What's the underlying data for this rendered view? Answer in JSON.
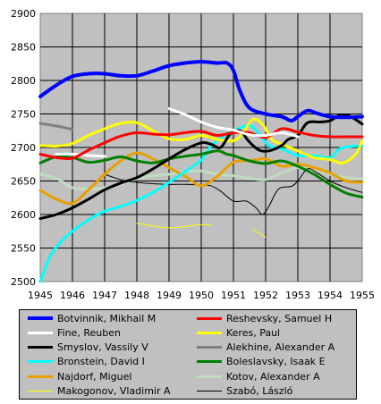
{
  "chart_data": {
    "type": "line",
    "title": "",
    "xlabel": "",
    "ylabel": "",
    "xlim": [
      1945,
      1955
    ],
    "ylim": [
      2500,
      2900
    ],
    "x_ticks": [
      "1945",
      "1946",
      "1947",
      "1948",
      "1949",
      "1950",
      "1951",
      "1952",
      "1953",
      "1954",
      "1955"
    ],
    "y_ticks": [
      "2500",
      "2550",
      "2600",
      "2650",
      "2700",
      "2750",
      "2800",
      "2850",
      "2900"
    ],
    "grid": true,
    "legend_position": "bottom",
    "series": [
      {
        "name": "Botvinnik, Mikhail M",
        "color": "#0000ff",
        "width": 4,
        "points": [
          [
            1945,
            2776
          ],
          [
            1945.5,
            2793
          ],
          [
            1946,
            2806
          ],
          [
            1946.5,
            2810
          ],
          [
            1947,
            2810
          ],
          [
            1947.5,
            2807
          ],
          [
            1948,
            2807
          ],
          [
            1948.5,
            2814
          ],
          [
            1949,
            2822
          ],
          [
            1949.5,
            2826
          ],
          [
            1950,
            2828
          ],
          [
            1950.5,
            2826
          ],
          [
            1950.8,
            2826
          ],
          [
            1951,
            2815
          ],
          [
            1951.2,
            2785
          ],
          [
            1951.5,
            2759
          ],
          [
            1952,
            2750
          ],
          [
            1952.5,
            2746
          ],
          [
            1952.8,
            2740
          ],
          [
            1953,
            2746
          ],
          [
            1953.3,
            2755
          ],
          [
            1953.6,
            2751
          ],
          [
            1954,
            2746
          ],
          [
            1954.5,
            2745
          ],
          [
            1955,
            2746
          ]
        ]
      },
      {
        "name": "Reshevsky, Samuel H",
        "color": "#ff0000",
        "width": 3,
        "points": [
          [
            1945,
            2690
          ],
          [
            1945.5,
            2685
          ],
          [
            1946,
            2684
          ],
          [
            1946.5,
            2696
          ],
          [
            1947,
            2707
          ],
          [
            1947.5,
            2717
          ],
          [
            1948,
            2722
          ],
          [
            1948.5,
            2720
          ],
          [
            1949,
            2719
          ],
          [
            1949.5,
            2722
          ],
          [
            1950,
            2724
          ],
          [
            1950.5,
            2718
          ],
          [
            1951,
            2722
          ],
          [
            1951.5,
            2722
          ],
          [
            1952,
            2715
          ],
          [
            1952.5,
            2728
          ],
          [
            1953,
            2723
          ],
          [
            1953.5,
            2718
          ],
          [
            1954,
            2716
          ],
          [
            1954.5,
            2716
          ],
          [
            1955,
            2716
          ]
        ]
      },
      {
        "name": "Fine, Reuben",
        "color": "#ffffff",
        "width": 3,
        "points": [
          [
            1949,
            2758
          ],
          [
            1949.5,
            2749
          ],
          [
            1950,
            2738
          ],
          [
            1950.5,
            2730
          ],
          [
            1951,
            2726
          ],
          [
            1951.5,
            2719
          ],
          [
            1952,
            2718
          ],
          [
            1952.5,
            2722
          ],
          [
            1953,
            2716
          ]
        ]
      },
      {
        "name": "Fine, Reuben (b)",
        "color": "#ffffff",
        "width": 3,
        "points": [
          [
            1945.5,
            2690
          ],
          [
            1946,
            2690
          ],
          [
            1946.5,
            2688
          ],
          [
            1947,
            2687
          ]
        ]
      },
      {
        "name": "Keres, Paul",
        "color": "#ffff00",
        "width": 3,
        "points": [
          [
            1945,
            2703
          ],
          [
            1945.5,
            2702
          ],
          [
            1946,
            2706
          ],
          [
            1946.5,
            2718
          ],
          [
            1947,
            2728
          ],
          [
            1947.5,
            2736
          ],
          [
            1948,
            2737
          ],
          [
            1948.5,
            2725
          ],
          [
            1949,
            2713
          ],
          [
            1949.5,
            2712
          ],
          [
            1950,
            2718
          ],
          [
            1950.5,
            2712
          ],
          [
            1951,
            2710
          ],
          [
            1951.3,
            2722
          ],
          [
            1951.6,
            2742
          ],
          [
            1951.9,
            2735
          ],
          [
            1952.2,
            2712
          ],
          [
            1952.5,
            2705
          ],
          [
            1953,
            2695
          ],
          [
            1953.5,
            2685
          ],
          [
            1954,
            2682
          ],
          [
            1954.4,
            2677
          ],
          [
            1954.8,
            2690
          ],
          [
            1955,
            2710
          ]
        ]
      },
      {
        "name": "Smyslov, Vassily V",
        "color": "#000000",
        "width": 3,
        "points": [
          [
            1945,
            2594
          ],
          [
            1945.5,
            2600
          ],
          [
            1946,
            2610
          ],
          [
            1946.5,
            2623
          ],
          [
            1947,
            2637
          ],
          [
            1947.5,
            2647
          ],
          [
            1948,
            2655
          ],
          [
            1948.5,
            2668
          ],
          [
            1949,
            2683
          ],
          [
            1949.5,
            2697
          ],
          [
            1950,
            2707
          ],
          [
            1950.3,
            2705
          ],
          [
            1950.6,
            2700
          ],
          [
            1950.9,
            2720
          ],
          [
            1951.2,
            2725
          ],
          [
            1951.5,
            2708
          ],
          [
            1951.8,
            2696
          ],
          [
            1952.1,
            2695
          ],
          [
            1952.5,
            2703
          ],
          [
            1952.7,
            2712
          ],
          [
            1953,
            2718
          ],
          [
            1953.3,
            2737
          ],
          [
            1953.7,
            2738
          ],
          [
            1954,
            2740
          ],
          [
            1954.3,
            2748
          ],
          [
            1954.6,
            2747
          ],
          [
            1955,
            2735
          ]
        ]
      },
      {
        "name": "Alekhine, Alexander A",
        "color": "#808080",
        "width": 3,
        "points": [
          [
            1945,
            2736
          ],
          [
            1945.5,
            2732
          ],
          [
            1946,
            2727
          ]
        ]
      },
      {
        "name": "Bronstein, David I",
        "color": "#00ffff",
        "width": 3,
        "points": [
          [
            1945,
            2500
          ],
          [
            1945.3,
            2537
          ],
          [
            1945.6,
            2557
          ],
          [
            1946,
            2575
          ],
          [
            1946.5,
            2592
          ],
          [
            1947,
            2605
          ],
          [
            1947.5,
            2612
          ],
          [
            1948,
            2621
          ],
          [
            1948.5,
            2633
          ],
          [
            1949,
            2648
          ],
          [
            1949.5,
            2664
          ],
          [
            1950,
            2681
          ],
          [
            1950.3,
            2702
          ],
          [
            1950.7,
            2717
          ],
          [
            1951,
            2725
          ],
          [
            1951.5,
            2733
          ],
          [
            1951.8,
            2720
          ],
          [
            1952.1,
            2703
          ],
          [
            1952.5,
            2698
          ],
          [
            1953,
            2688
          ],
          [
            1953.5,
            2688
          ],
          [
            1954,
            2685
          ],
          [
            1954.3,
            2698
          ],
          [
            1954.7,
            2702
          ],
          [
            1955,
            2702
          ]
        ]
      },
      {
        "name": "Boleslavsky, Isaak E",
        "color": "#008000",
        "width": 3,
        "points": [
          [
            1945,
            2677
          ],
          [
            1945.5,
            2686
          ],
          [
            1946,
            2685
          ],
          [
            1946.5,
            2678
          ],
          [
            1947,
            2681
          ],
          [
            1947.5,
            2686
          ],
          [
            1948,
            2680
          ],
          [
            1948.5,
            2677
          ],
          [
            1949,
            2683
          ],
          [
            1949.5,
            2687
          ],
          [
            1950,
            2690
          ],
          [
            1950.5,
            2695
          ],
          [
            1950.8,
            2690
          ],
          [
            1951,
            2688
          ],
          [
            1951.5,
            2680
          ],
          [
            1952,
            2676
          ],
          [
            1952.5,
            2680
          ],
          [
            1953,
            2672
          ],
          [
            1953.5,
            2660
          ],
          [
            1954,
            2645
          ],
          [
            1954.5,
            2632
          ],
          [
            1955,
            2626
          ]
        ]
      },
      {
        "name": "Najdorf, Miguel",
        "color": "#e8a000",
        "width": 3,
        "points": [
          [
            1945,
            2636
          ],
          [
            1945.5,
            2623
          ],
          [
            1946,
            2617
          ],
          [
            1946.5,
            2637
          ],
          [
            1947,
            2660
          ],
          [
            1947.5,
            2680
          ],
          [
            1948,
            2692
          ],
          [
            1948.5,
            2683
          ],
          [
            1949,
            2670
          ],
          [
            1949.5,
            2657
          ],
          [
            1950,
            2643
          ],
          [
            1950.5,
            2657
          ],
          [
            1951,
            2678
          ],
          [
            1951.5,
            2680
          ],
          [
            1952,
            2683
          ],
          [
            1952.5,
            2672
          ],
          [
            1953,
            2675
          ],
          [
            1953.5,
            2670
          ],
          [
            1954,
            2662
          ],
          [
            1954.5,
            2650
          ],
          [
            1955,
            2648
          ]
        ]
      },
      {
        "name": "Kotov, Alexander A",
        "color": "#c0dcc0",
        "width": 3,
        "points": [
          [
            1945,
            2660
          ],
          [
            1945.5,
            2654
          ],
          [
            1946,
            2640
          ],
          [
            1946.5,
            2638
          ],
          [
            1947,
            2640
          ],
          [
            1947.5,
            2645
          ],
          [
            1948,
            2653
          ],
          [
            1948.5,
            2658
          ],
          [
            1949,
            2660
          ],
          [
            1949.5,
            2664
          ],
          [
            1950,
            2665
          ],
          [
            1950.5,
            2660
          ],
          [
            1951,
            2658
          ],
          [
            1951.5,
            2654
          ],
          [
            1952,
            2652
          ],
          [
            1952.5,
            2662
          ],
          [
            1953,
            2670
          ],
          [
            1953.5,
            2668
          ],
          [
            1954,
            2660
          ],
          [
            1954.5,
            2655
          ],
          [
            1955,
            2653
          ]
        ]
      },
      {
        "name": "Makogonov, Vladimir A",
        "color": "#ffff00",
        "width": 1,
        "points": [
          [
            1948,
            2587
          ],
          [
            1948.5,
            2583
          ],
          [
            1949,
            2580
          ],
          [
            1949.5,
            2582
          ],
          [
            1950,
            2585
          ],
          [
            1950.3,
            2584
          ]
        ]
      },
      {
        "name": "Makogonov, Vladimir A (b)",
        "color": "#ffff00",
        "width": 1,
        "points": [
          [
            1951.6,
            2578
          ],
          [
            1952,
            2566
          ]
        ]
      },
      {
        "name": "Szabó, László",
        "color": "#000000",
        "width": 1,
        "points": [
          [
            1947,
            2660
          ],
          [
            1947.5,
            2652
          ],
          [
            1948,
            2648
          ],
          [
            1948.5,
            2646
          ],
          [
            1949,
            2645
          ],
          [
            1949.5,
            2645
          ],
          [
            1950,
            2644
          ],
          [
            1950.3,
            2643
          ],
          [
            1950.6,
            2635
          ],
          [
            1951,
            2620
          ],
          [
            1951.4,
            2620
          ],
          [
            1951.7,
            2610
          ],
          [
            1951.9,
            2600
          ],
          [
            1952.1,
            2612
          ],
          [
            1952.4,
            2638
          ],
          [
            1952.8,
            2642
          ],
          [
            1953,
            2650
          ],
          [
            1953.3,
            2668
          ],
          [
            1953.6,
            2662
          ],
          [
            1954,
            2650
          ],
          [
            1954.5,
            2640
          ],
          [
            1955,
            2633
          ]
        ]
      }
    ],
    "legend": [
      {
        "label": "Botvinnik, Mikhail M",
        "color": "#0000ff",
        "width": 4
      },
      {
        "label": "Reshevsky, Samuel H",
        "color": "#ff0000",
        "width": 3
      },
      {
        "label": "Fine, Reuben",
        "color": "#ffffff",
        "width": 3
      },
      {
        "label": "Keres, Paul",
        "color": "#ffff00",
        "width": 3
      },
      {
        "label": "Smyslov, Vassily V",
        "color": "#000000",
        "width": 3
      },
      {
        "label": "Alekhine, Alexander A",
        "color": "#808080",
        "width": 3
      },
      {
        "label": "Bronstein, David I",
        "color": "#00ffff",
        "width": 3
      },
      {
        "label": "Boleslavsky, Isaak E",
        "color": "#008000",
        "width": 3
      },
      {
        "label": "Najdorf, Miguel",
        "color": "#e8a000",
        "width": 3
      },
      {
        "label": "Kotov, Alexander A",
        "color": "#c0dcc0",
        "width": 3
      },
      {
        "label": "Makogonov, Vladimir A",
        "color": "#ffff00",
        "width": 1
      },
      {
        "label": "Szabó, László",
        "color": "#000000",
        "width": 1
      }
    ],
    "plot_background": "#c0c0c0"
  }
}
